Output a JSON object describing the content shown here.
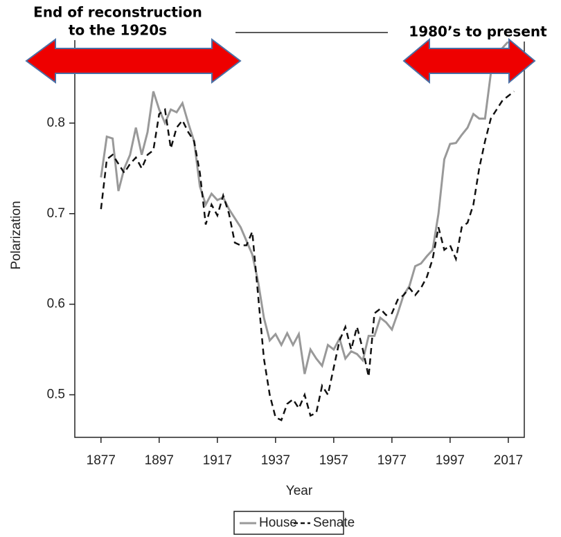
{
  "chart_data": {
    "type": "line",
    "annotations": [
      [
        "End of reconstruction",
        "to the 1920s"
      ],
      [
        "1980’s to present"
      ]
    ],
    "xlabel": "Year",
    "ylabel": "Polarization",
    "x": [
      1877,
      1879,
      1881,
      1883,
      1885,
      1887,
      1889,
      1891,
      1893,
      1895,
      1897,
      1899,
      1901,
      1903,
      1905,
      1907,
      1909,
      1911,
      1913,
      1915,
      1917,
      1919,
      1921,
      1923,
      1925,
      1927,
      1929,
      1931,
      1933,
      1935,
      1937,
      1939,
      1941,
      1943,
      1945,
      1947,
      1949,
      1951,
      1953,
      1955,
      1957,
      1959,
      1961,
      1963,
      1965,
      1967,
      1969,
      1971,
      1973,
      1975,
      1977,
      1979,
      1981,
      1983,
      1985,
      1987,
      1989,
      1991,
      1993,
      1995,
      1997,
      1999,
      2001,
      2003,
      2005,
      2007,
      2009,
      2011,
      2013,
      2015,
      2017,
      2019
    ],
    "series": [
      {
        "name": "House",
        "color": "#999999",
        "dash": false,
        "values": [
          0.74,
          0.785,
          0.783,
          0.725,
          0.75,
          0.765,
          0.795,
          0.765,
          0.79,
          0.835,
          0.815,
          0.8,
          0.815,
          0.812,
          0.822,
          0.8,
          0.78,
          0.73,
          0.71,
          0.722,
          0.715,
          0.718,
          0.705,
          0.695,
          0.685,
          0.67,
          0.655,
          0.625,
          0.585,
          0.56,
          0.567,
          0.555,
          0.568,
          0.555,
          0.567,
          0.523,
          0.55,
          0.54,
          0.532,
          0.555,
          0.55,
          0.562,
          0.54,
          0.548,
          0.545,
          0.538,
          0.565,
          0.565,
          0.585,
          0.58,
          0.572,
          0.59,
          0.61,
          0.62,
          0.642,
          0.645,
          0.653,
          0.66,
          0.7,
          0.76,
          0.777,
          0.778,
          0.787,
          0.795,
          0.81,
          0.805,
          0.805,
          0.855,
          0.873,
          0.883,
          0.89,
          0.895
        ]
      },
      {
        "name": "Senate",
        "color": "#111111",
        "dash": true,
        "values": [
          0.705,
          0.76,
          0.765,
          0.755,
          0.745,
          0.755,
          0.762,
          0.75,
          0.765,
          0.77,
          0.81,
          0.815,
          0.772,
          0.795,
          0.803,
          0.79,
          0.78,
          0.745,
          0.688,
          0.71,
          0.698,
          0.72,
          0.7,
          0.668,
          0.665,
          0.665,
          0.68,
          0.61,
          0.54,
          0.5,
          0.475,
          0.472,
          0.49,
          0.495,
          0.485,
          0.5,
          0.477,
          0.48,
          0.51,
          0.5,
          0.53,
          0.56,
          0.575,
          0.55,
          0.575,
          0.55,
          0.52,
          0.59,
          0.595,
          0.588,
          0.59,
          0.605,
          0.61,
          0.618,
          0.61,
          0.618,
          0.63,
          0.65,
          0.685,
          0.66,
          0.665,
          0.65,
          0.685,
          0.69,
          0.71,
          0.75,
          0.78,
          0.805,
          0.815,
          0.825,
          0.83,
          0.835
        ]
      }
    ],
    "xlim": [
      1868,
      2022.5
    ],
    "xticks": [
      1877,
      1897,
      1917,
      1937,
      1957,
      1977,
      1997,
      2017
    ],
    "ylim": [
      0.453,
      0.9
    ],
    "yticks": [
      0.5,
      0.6,
      0.7,
      0.8
    ],
    "legend": "bottom"
  }
}
